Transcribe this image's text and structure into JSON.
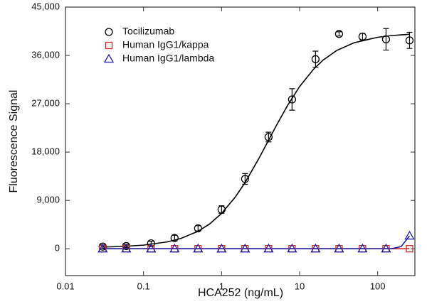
{
  "chart_data": {
    "type": "scatter",
    "xlabel": "HCA252 (ng/mL)",
    "ylabel": "Fluorescence Signal",
    "xscale": "log",
    "legend": "upper left",
    "xlim": [
      0.01,
      300
    ],
    "ylim": [
      -5000,
      45000
    ],
    "xticks": [
      0.01,
      0.1,
      1,
      10,
      100
    ],
    "yticks": [
      0,
      {
        "value": 9000,
        "label": "9,000"
      },
      {
        "value": 18000,
        "label": "18,000"
      },
      {
        "value": 27000,
        "label": "27,000"
      },
      {
        "value": 36000,
        "label": "36,000"
      },
      {
        "value": 45000,
        "label": "45,000"
      }
    ],
    "x": [
      0.03,
      0.06,
      0.125,
      0.25,
      0.5,
      1,
      2,
      4,
      8,
      16,
      32,
      64,
      128,
      256
    ],
    "fit_x": [
      0.03,
      0.05,
      0.1,
      0.2,
      0.3,
      0.5,
      0.7,
      1,
      1.5,
      2,
      3,
      4,
      5,
      7,
      10,
      15,
      20,
      30,
      50,
      100,
      150,
      200,
      256
    ],
    "series": [
      {
        "name": "Tocilizumab",
        "color": "#000000",
        "marker": "circle",
        "values": [
          400,
          500,
          1000,
          2000,
          3800,
          7300,
          13000,
          20800,
          27800,
          35300,
          40000,
          39500,
          39000,
          38800
        ],
        "errors": [
          300,
          300,
          400,
          500,
          500,
          700,
          1000,
          900,
          2000,
          1500,
          400,
          600,
          2000,
          1500
        ],
        "fit_values": [
          313,
          407,
          671,
          1267,
          1909,
          3253,
          4596,
          6569,
          9634,
          12321,
          16798,
          20200,
          22863,
          26673,
          30208,
          33395,
          35134,
          36931,
          38368,
          39377,
          39691,
          39835,
          39930
        ]
      },
      {
        "name": "Human IgG1/kappa",
        "color": "#d62728",
        "marker": "square",
        "values": [
          0,
          0,
          0,
          0,
          0,
          0,
          0,
          0,
          0,
          0,
          0,
          0,
          0,
          0
        ],
        "fit_values": [
          0,
          0,
          0,
          0,
          0,
          0,
          0,
          0,
          0,
          0,
          0,
          0,
          0,
          0,
          0,
          0,
          0,
          0,
          0,
          0,
          0,
          0,
          0
        ]
      },
      {
        "name": "Human IgG1/lambda",
        "color": "#1f1fa8",
        "marker": "triangle",
        "values": [
          0,
          0,
          0,
          0,
          0,
          0,
          0,
          0,
          0,
          0,
          0,
          0,
          0,
          2400
        ],
        "fit_values": [
          0,
          0,
          0,
          0,
          0,
          0,
          0,
          0,
          0,
          0,
          0,
          0,
          0,
          0,
          0,
          0,
          0,
          0,
          0,
          0,
          0,
          400,
          2400
        ]
      }
    ]
  }
}
